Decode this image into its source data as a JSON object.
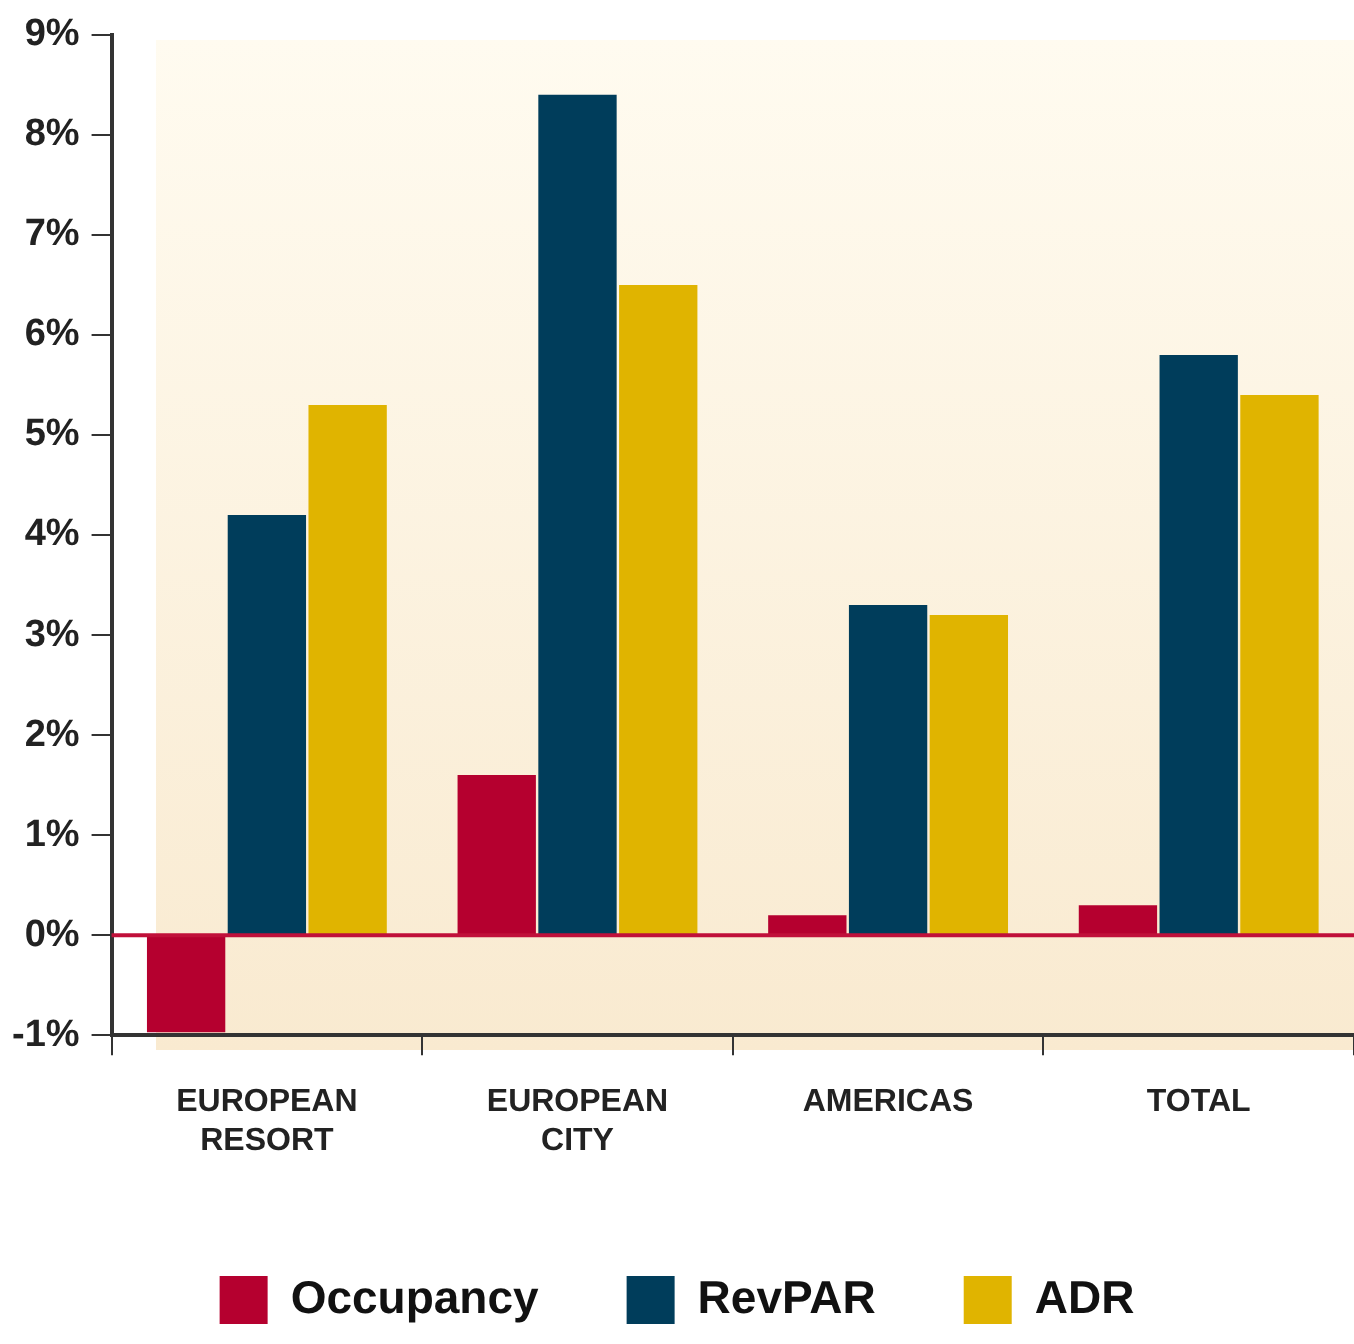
{
  "chart_data": {
    "type": "bar",
    "categories": [
      "EUROPEAN RESORT",
      "EUROPEAN CITY",
      "AMERICAS",
      "TOTAL"
    ],
    "series": [
      {
        "name": "Occupancy",
        "color": "#b5002f",
        "values": [
          -0.97,
          1.6,
          0.2,
          0.3
        ]
      },
      {
        "name": "RevPAR",
        "color": "#003d5b",
        "values": [
          4.2,
          8.4,
          3.3,
          5.8
        ]
      },
      {
        "name": "ADR",
        "color": "#e0b400",
        "values": [
          5.3,
          6.5,
          3.2,
          5.4
        ]
      }
    ],
    "ylim": [
      -1,
      9
    ],
    "yticks": [
      {
        "value": -1,
        "label": "-1%"
      },
      {
        "value": 0,
        "label": "0%"
      },
      {
        "value": 1,
        "label": "1%"
      },
      {
        "value": 2,
        "label": "2%"
      },
      {
        "value": 3,
        "label": "3%"
      },
      {
        "value": 4,
        "label": "4%"
      },
      {
        "value": 5,
        "label": "5%"
      },
      {
        "value": 6,
        "label": "6%"
      },
      {
        "value": 7,
        "label": "7%"
      },
      {
        "value": 8,
        "label": "8%"
      },
      {
        "value": 9,
        "label": "9%"
      }
    ],
    "ref_lines": [
      {
        "axis": "y",
        "value": 0,
        "color": "#c0103a"
      }
    ],
    "grid": false,
    "legend": "bottom"
  }
}
